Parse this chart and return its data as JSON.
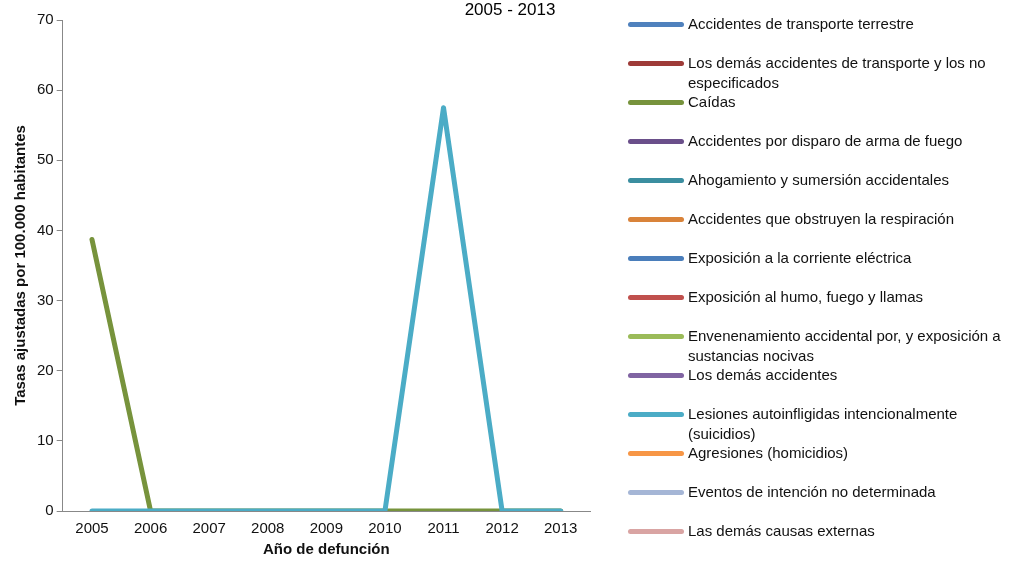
{
  "chart_data": {
    "type": "line",
    "title": "2005 - 2013",
    "xlabel": "Año de defunción",
    "ylabel": "Tasas ajustadas por 100.000 habitantes",
    "categories": [
      "2005",
      "2006",
      "2007",
      "2008",
      "2009",
      "2010",
      "2011",
      "2012",
      "2013"
    ],
    "ylim": [
      0,
      70
    ],
    "yticks": [
      0,
      10,
      20,
      30,
      40,
      50,
      60,
      70
    ],
    "grid": false,
    "legend": "right",
    "marker": "none",
    "line_style": "solid",
    "series": [
      {
        "name": "Accidentes de transporte terrestre",
        "color": "#4f81bd",
        "values": [
          null,
          null,
          null,
          null,
          null,
          null,
          null,
          null,
          null
        ]
      },
      {
        "name": "Los demás accidentes de transporte y los no especificados",
        "color": "#9e3b38",
        "values": [
          null,
          null,
          null,
          null,
          null,
          null,
          null,
          null,
          null
        ]
      },
      {
        "name": "Caídas",
        "color": "#77933c",
        "values": [
          38.7,
          0,
          0,
          0,
          0,
          0,
          0,
          0,
          0
        ]
      },
      {
        "name": "Accidentes por disparo de arma de fuego",
        "color": "#6a4f8a",
        "values": [
          null,
          null,
          null,
          null,
          null,
          null,
          null,
          null,
          null
        ]
      },
      {
        "name": "Ahogamiento y sumersión accidentales",
        "color": "#3b8ea0",
        "values": [
          null,
          null,
          null,
          null,
          null,
          null,
          null,
          null,
          null
        ]
      },
      {
        "name": "Accidentes que obstruyen la respiración",
        "color": "#d9833a",
        "values": [
          null,
          null,
          null,
          null,
          null,
          null,
          null,
          null,
          null
        ]
      },
      {
        "name": "Exposición a la corriente eléctrica",
        "color": "#4a7ebb",
        "values": [
          null,
          null,
          null,
          null,
          null,
          null,
          null,
          null,
          null
        ]
      },
      {
        "name": "Exposición al humo, fuego y llamas",
        "color": "#c0504d",
        "values": [
          null,
          null,
          null,
          null,
          null,
          null,
          null,
          null,
          null
        ]
      },
      {
        "name": "Envenenamiento accidental por, y exposición a sustancias nocivas",
        "color": "#9bbb59",
        "values": [
          null,
          null,
          null,
          null,
          null,
          null,
          null,
          null,
          null
        ]
      },
      {
        "name": "Los demás accidentes",
        "color": "#8064a2",
        "values": [
          null,
          null,
          null,
          null,
          null,
          null,
          null,
          null,
          null
        ]
      },
      {
        "name": "Lesiones autoinfligidas intencionalmente (suicidios)",
        "color": "#4bacc6",
        "values": [
          0,
          0,
          0,
          0,
          0,
          0,
          57.5,
          0,
          0
        ]
      },
      {
        "name": "Agresiones (homicidios)",
        "color": "#f79646",
        "values": [
          null,
          null,
          null,
          null,
          null,
          null,
          null,
          null,
          null
        ]
      },
      {
        "name": "Eventos de intención no determinada",
        "color": "#a5b6d6",
        "values": [
          null,
          null,
          null,
          null,
          null,
          null,
          null,
          null,
          null
        ]
      },
      {
        "name": "Las demás causas externas",
        "color": "#d9a4a3",
        "values": [
          null,
          null,
          null,
          null,
          null,
          null,
          null,
          null,
          null
        ]
      }
    ]
  }
}
